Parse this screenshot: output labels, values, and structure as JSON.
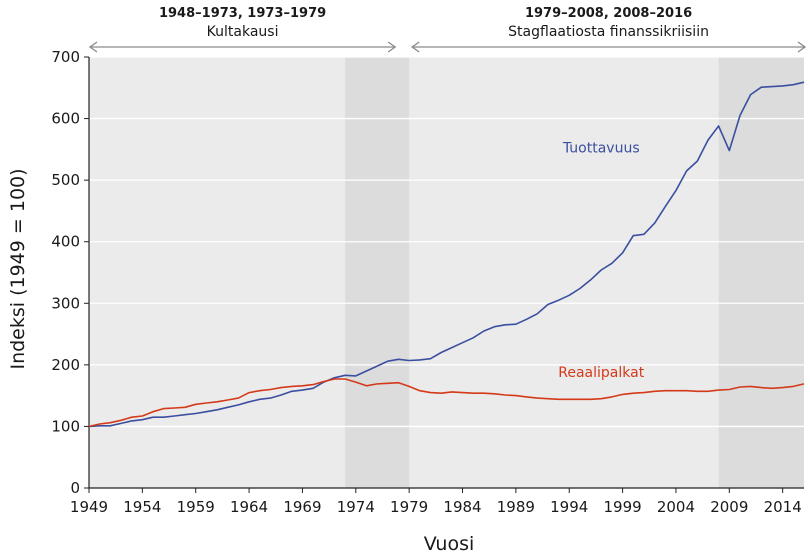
{
  "chart_data": {
    "type": "line",
    "xlabel": "Vuosi",
    "ylabel": "Indeksi (1949 = 100)",
    "xlim": [
      1949,
      2016
    ],
    "ylim": [
      0,
      700
    ],
    "y_ticks": [
      0,
      100,
      200,
      300,
      400,
      500,
      600,
      700
    ],
    "y_tick_labels": [
      "0",
      "100",
      "200",
      "300",
      "400",
      "500",
      "600",
      "700"
    ],
    "x_ticks": [
      1949,
      1954,
      1959,
      1964,
      1969,
      1974,
      1979,
      1984,
      1989,
      1994,
      1999,
      2004,
      2009,
      2014
    ],
    "x_tick_labels": [
      "1949",
      "1954",
      "1959",
      "1964",
      "1969",
      "1974",
      "1979",
      "1984",
      "1989",
      "1994",
      "1999",
      "2004",
      "2009",
      "2014"
    ],
    "grid": true,
    "colors": {
      "plot_background": "#ebebeb",
      "shaded_band": "#dcdcdc",
      "grid": "#ffffff",
      "arrow": "#8a8a8a",
      "productivity": "#3a4fa0",
      "wages": "#d43a1a"
    },
    "shaded_periods": [
      [
        1973,
        1979
      ],
      [
        2008,
        2016
      ]
    ],
    "periods": [
      {
        "range": [
          1949,
          1979
        ],
        "title": "1948–1973, 1973–1979",
        "subtitle": "Kultakausi"
      },
      {
        "range": [
          1979,
          2016
        ],
        "title": "1979–2008, 2008–2016",
        "subtitle": "Stagflaatiosta finanssikriisiin"
      }
    ],
    "x": [
      1949,
      1950,
      1951,
      1952,
      1953,
      1954,
      1955,
      1956,
      1957,
      1958,
      1959,
      1960,
      1961,
      1962,
      1963,
      1964,
      1965,
      1966,
      1967,
      1968,
      1969,
      1970,
      1971,
      1972,
      1973,
      1974,
      1975,
      1976,
      1977,
      1978,
      1979,
      1980,
      1981,
      1982,
      1983,
      1984,
      1985,
      1986,
      1987,
      1988,
      1989,
      1990,
      1991,
      1992,
      1993,
      1994,
      1995,
      1996,
      1997,
      1998,
      1999,
      2000,
      2001,
      2002,
      2003,
      2004,
      2005,
      2006,
      2007,
      2008,
      2009,
      2010,
      2011,
      2012,
      2013,
      2014,
      2015,
      2016
    ],
    "series": [
      {
        "name": "Tuottavuus",
        "label_x": 1997,
        "label_y": 545,
        "values": [
          100,
          101,
          101,
          105,
          109,
          111,
          115,
          115,
          117,
          119,
          121,
          124,
          127,
          131,
          135,
          140,
          144,
          146,
          151,
          157,
          159,
          162,
          172,
          179,
          183,
          182,
          190,
          198,
          206,
          209,
          207,
          208,
          210,
          220,
          228,
          236,
          244,
          255,
          262,
          265,
          266,
          274,
          283,
          298,
          305,
          313,
          324,
          338,
          354,
          365,
          382,
          410,
          412,
          430,
          457,
          483,
          515,
          531,
          565,
          588,
          548,
          605,
          639,
          651,
          652,
          653,
          655,
          659
        ]
      },
      {
        "name": "Reaalipalkat",
        "label_x": 1997,
        "label_y": 180,
        "values": [
          100,
          104,
          106,
          110,
          115,
          117,
          124,
          129,
          130,
          131,
          136,
          138,
          140,
          143,
          146,
          155,
          158,
          160,
          163,
          165,
          166,
          168,
          173,
          177,
          177,
          172,
          166,
          169,
          170,
          171,
          165,
          158,
          155,
          154,
          156,
          155,
          154,
          154,
          153,
          151,
          150,
          148,
          146,
          145,
          144,
          144,
          144,
          144,
          145,
          148,
          152,
          154,
          155,
          157,
          158,
          158,
          158,
          157,
          157,
          159,
          160,
          164,
          165,
          163,
          162,
          163,
          165,
          169
        ]
      }
    ]
  }
}
